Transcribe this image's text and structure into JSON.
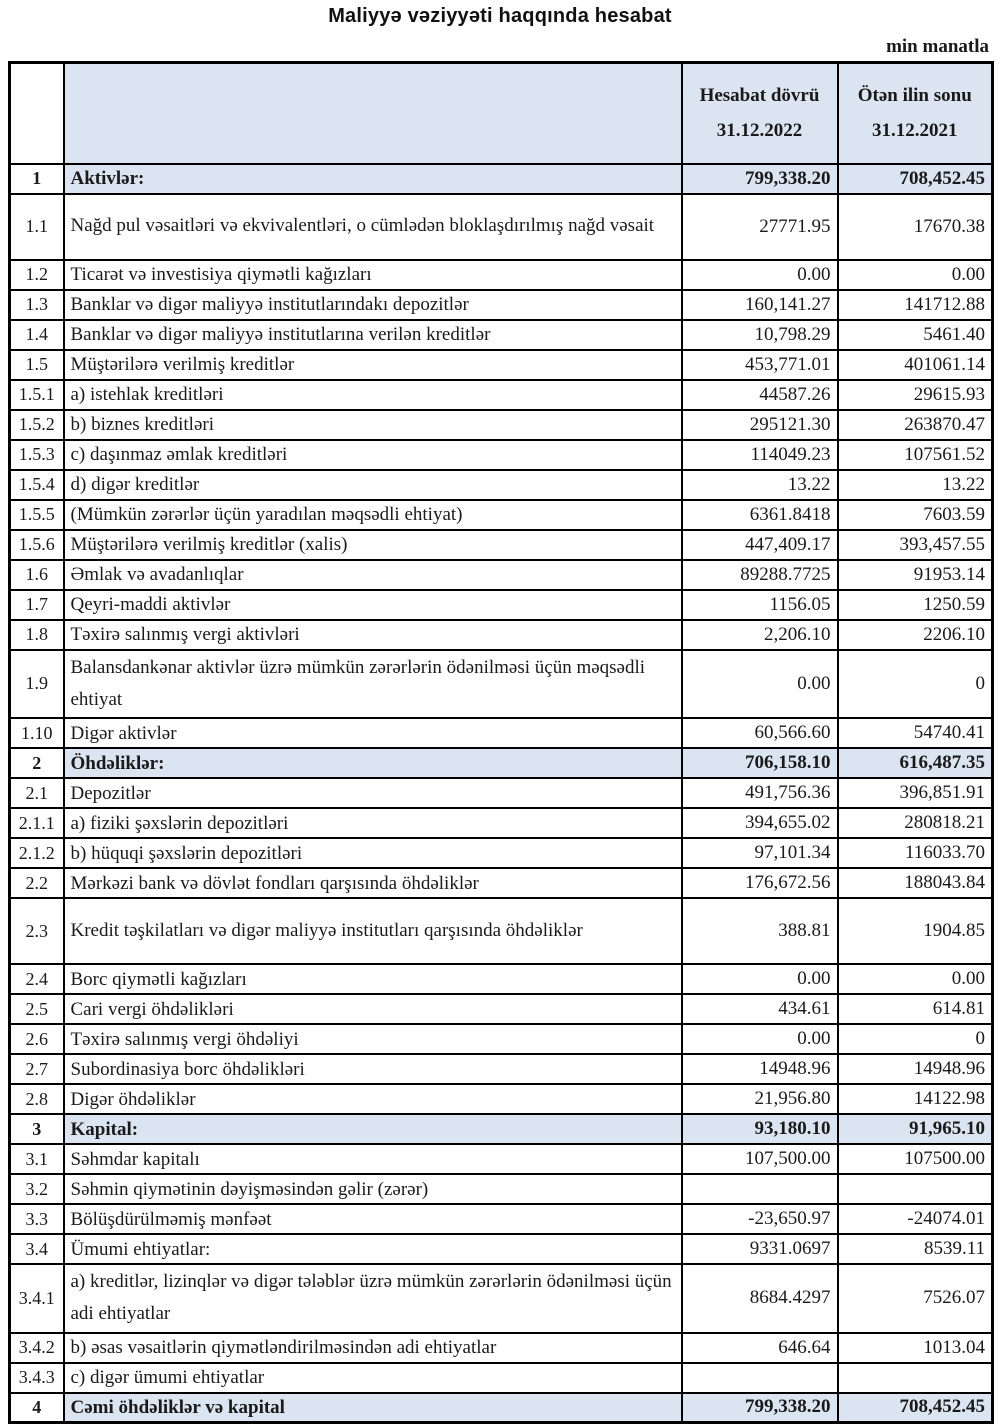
{
  "page": {
    "title": "Maliyyə vəziyyəti haqqında hesabat",
    "unit_note": "min manatla"
  },
  "colors": {
    "section_highlight": "#dbe5f1",
    "border": "#000000",
    "background": "#ffffff"
  },
  "table": {
    "header": {
      "no_column": "",
      "label_column": "",
      "current_period_line1": "Hesabat dövrü",
      "current_period_line2": "31.12.2022",
      "prior_period_line1": "Ötən ilin sonu",
      "prior_period_line2": "31.12.2021"
    },
    "rows": [
      {
        "no": "1",
        "label": "Aktivlər:",
        "current": "799,338.20",
        "prior": "708,452.45",
        "section": true,
        "tall": false
      },
      {
        "no": "1.1",
        "label": "Nağd pul vəsaitləri və  ekvivalentləri, o cümlədən bloklaşdırılmış nağd vəsait",
        "current": "27771.95",
        "prior": "17670.38",
        "section": false,
        "tall": true
      },
      {
        "no": "1.2",
        "label": "Ticarət və investisiya qiymətli kağızları",
        "current": "0.00",
        "prior": "0.00",
        "section": false,
        "tall": false
      },
      {
        "no": "1.3",
        "label": "Banklar və digər maliyyə institutlarındakı depozitlər",
        "current": "160,141.27",
        "prior": "141712.88",
        "section": false,
        "tall": false
      },
      {
        "no": "1.4",
        "label": "Banklar və digər maliyyə institutlarına verilən kreditlər",
        "current": "10,798.29",
        "prior": "5461.40",
        "section": false,
        "tall": false
      },
      {
        "no": "1.5",
        "label": "Müştərilərə verilmiş kreditlər",
        "current": "453,771.01",
        "prior": "401061.14",
        "section": false,
        "tall": false
      },
      {
        "no": "1.5.1",
        "label": "a) istehlak kreditləri",
        "current": "44587.26",
        "prior": "29615.93",
        "section": false,
        "tall": false
      },
      {
        "no": "1.5.2",
        "label": "b) biznes kreditləri",
        "current": "295121.30",
        "prior": "263870.47",
        "section": false,
        "tall": false
      },
      {
        "no": "1.5.3",
        "label": "c) daşınmaz əmlak kreditləri",
        "current": "114049.23",
        "prior": "107561.52",
        "section": false,
        "tall": false
      },
      {
        "no": "1.5.4",
        "label": "d) digər kreditlər",
        "current": "13.22",
        "prior": "13.22",
        "section": false,
        "tall": false
      },
      {
        "no": "1.5.5",
        "label": "(Mümkün zərərlər üçün yaradılan məqsədli ehtiyat)",
        "current": "6361.8418",
        "prior": "7603.59",
        "section": false,
        "tall": false
      },
      {
        "no": "1.5.6",
        "label": "Müştərilərə verilmiş kreditlər (xalis)",
        "current": "447,409.17",
        "prior": "393,457.55",
        "section": false,
        "tall": false
      },
      {
        "no": "1.6",
        "label": "Əmlak və avadanlıqlar",
        "current": "89288.7725",
        "prior": "91953.14",
        "section": false,
        "tall": false
      },
      {
        "no": "1.7",
        "label": "Qeyri-maddi aktivlər",
        "current": "1156.05",
        "prior": "1250.59",
        "section": false,
        "tall": false
      },
      {
        "no": "1.8",
        "label": "Təxirə salınmış vergi aktivləri",
        "current": "2,206.10",
        "prior": "2206.10",
        "section": false,
        "tall": false
      },
      {
        "no": "1.9",
        "label": "Balansdankənar aktivlər üzrə mümkün zərərlərin ödənilməsi üçün məqsədli ehtiyat",
        "current": "0.00",
        "prior": "0",
        "section": false,
        "tall": true
      },
      {
        "no": "1.10",
        "label": "Digər aktivlər",
        "current": "60,566.60",
        "prior": "54740.41",
        "section": false,
        "tall": false
      },
      {
        "no": "2",
        "label": "Öhdəliklər:",
        "current": "706,158.10",
        "prior": "616,487.35",
        "section": true,
        "tall": false
      },
      {
        "no": "2.1",
        "label": "Depozitlər",
        "current": "491,756.36",
        "prior": "396,851.91",
        "section": false,
        "tall": false
      },
      {
        "no": "2.1.1",
        "label": "a) fiziki şəxslərin depozitləri",
        "current": "394,655.02",
        "prior": "280818.21",
        "section": false,
        "tall": false
      },
      {
        "no": "2.1.2",
        "label": "b) hüquqi şəxslərin depozitləri",
        "current": "97,101.34",
        "prior": "116033.70",
        "section": false,
        "tall": false
      },
      {
        "no": "2.2",
        "label": "Mərkəzi bank və dövlət fondları qarşısında öhdəliklər",
        "current": "176,672.56",
        "prior": "188043.84",
        "section": false,
        "tall": false
      },
      {
        "no": "2.3",
        "label": "Kredit təşkilatları və digər maliyyə institutları qarşısında öhdəliklər",
        "current": "388.81",
        "prior": "1904.85",
        "section": false,
        "tall": true
      },
      {
        "no": "2.4",
        "label": "Borc qiymətli kağızları",
        "current": "0.00",
        "prior": "0.00",
        "section": false,
        "tall": false
      },
      {
        "no": "2.5",
        "label": "Cari vergi öhdəlikləri",
        "current": "434.61",
        "prior": "614.81",
        "section": false,
        "tall": false
      },
      {
        "no": "2.6",
        "label": "Təxirə salınmış vergi öhdəliyi",
        "current": "0.00",
        "prior": "0",
        "section": false,
        "tall": false
      },
      {
        "no": "2.7",
        "label": "Subordinasiya borc öhdəlikləri",
        "current": "14948.96",
        "prior": "14948.96",
        "section": false,
        "tall": false
      },
      {
        "no": "2.8",
        "label": "Digər öhdəliklər",
        "current": "21,956.80",
        "prior": "14122.98",
        "section": false,
        "tall": false
      },
      {
        "no": "3",
        "label": "Kapital:",
        "current": "93,180.10",
        "prior": "91,965.10",
        "section": true,
        "tall": false
      },
      {
        "no": "3.1",
        "label": "Səhmdar kapitalı",
        "current": "107,500.00",
        "prior": "107500.00",
        "section": false,
        "tall": false
      },
      {
        "no": "3.2",
        "label": "Səhmin qiymətinin dəyişməsindən gəlir (zərər)",
        "current": "",
        "prior": "",
        "section": false,
        "tall": false
      },
      {
        "no": "3.3",
        "label": "Bölüşdürülməmiş mənfəət",
        "current": "-23,650.97",
        "prior": "-24074.01",
        "section": false,
        "tall": false
      },
      {
        "no": "3.4",
        "label": "Ümumi ehtiyatlar:",
        "current": "9331.0697",
        "prior": "8539.11",
        "section": false,
        "tall": false
      },
      {
        "no": "3.4.1",
        "label": "a) kreditlər, lizinqlər və digər tələblər üzrə mümkün zərərlərin ödənilməsi üçün adi ehtiyatlar",
        "current": "8684.4297",
        "prior": "7526.07",
        "section": false,
        "tall": true
      },
      {
        "no": "3.4.2",
        "label": "b) əsas vəsaitlərin qiymətləndirilməsindən adi ehtiyatlar",
        "current": "646.64",
        "prior": "1013.04",
        "section": false,
        "tall": false
      },
      {
        "no": "3.4.3",
        "label": "c) digər ümumi ehtiyatlar",
        "current": "",
        "prior": "",
        "section": false,
        "tall": false
      },
      {
        "no": "4",
        "label": "Cəmi öhdəliklər və kapital",
        "current": "799,338.20",
        "prior": "708,452.45",
        "section": true,
        "tall": false
      }
    ]
  }
}
